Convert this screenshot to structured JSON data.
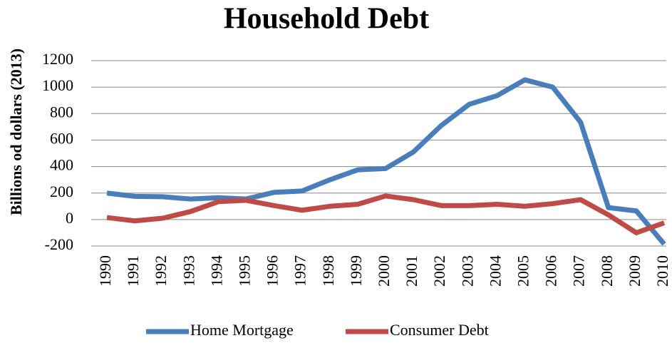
{
  "chart_data": {
    "type": "line",
    "title": "Household Debt",
    "y_label": "Billions od dollars (2013)",
    "categories": [
      "1990",
      "1991",
      "1992",
      "1993",
      "1994",
      "1995",
      "1996",
      "1997",
      "1998",
      "1999",
      "2000",
      "2001",
      "2002",
      "2003",
      "2004",
      "2005",
      "2006",
      "2007",
      "2008",
      "2009",
      "2010"
    ],
    "series": [
      {
        "name": "Home Mortgage",
        "color": "#4a7ebb",
        "values": [
          200,
          175,
          172,
          155,
          165,
          155,
          205,
          215,
          300,
          375,
          385,
          510,
          710,
          870,
          935,
          1055,
          1000,
          735,
          90,
          65,
          -185
        ]
      },
      {
        "name": "Consumer Debt",
        "color": "#be4b48",
        "values": [
          15,
          -10,
          10,
          60,
          135,
          145,
          105,
          70,
          100,
          115,
          178,
          150,
          105,
          105,
          115,
          100,
          120,
          150,
          35,
          -100,
          -25
        ]
      }
    ],
    "ylim": [
      -200,
      1200
    ],
    "yticks": [
      -200,
      0,
      200,
      400,
      600,
      800,
      1000,
      1200
    ],
    "grid": true,
    "legend": "bottom"
  }
}
